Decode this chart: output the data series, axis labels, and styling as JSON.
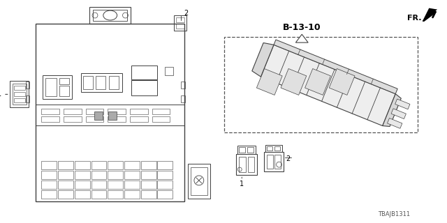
{
  "bg_color": "#ffffff",
  "title_ref": "B-13-10",
  "part_number": "TBAJB1311",
  "fr_label": "FR.",
  "line_color": "#404040",
  "light_gray": "#cccccc",
  "mid_gray": "#888888"
}
